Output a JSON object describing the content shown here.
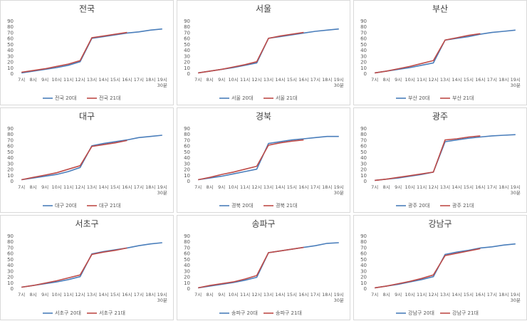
{
  "chart_data": [
    {
      "type": "line",
      "title": "전국",
      "categories": [
        "7시",
        "8시",
        "9시",
        "10시",
        "11시",
        "12시",
        "13시",
        "14시",
        "15시",
        "16시",
        "17시",
        "18시",
        "19시 30분"
      ],
      "ylim": [
        0,
        90
      ],
      "yticks": [
        0,
        10,
        20,
        30,
        40,
        50,
        60,
        70,
        80,
        90
      ],
      "grid": false,
      "series": [
        {
          "name": "전국 20대",
          "color": "#4a7ebb",
          "values": [
            2,
            5,
            8,
            11,
            15,
            21,
            61,
            64,
            67,
            70,
            72,
            75,
            77
          ]
        },
        {
          "name": "전국 21대",
          "color": "#be4b48",
          "values": [
            3,
            6,
            9,
            13,
            17,
            23,
            62,
            65,
            68,
            71,
            null,
            null,
            null
          ]
        }
      ]
    },
    {
      "type": "line",
      "title": "서울",
      "categories": [
        "7시",
        "8시",
        "9시",
        "10시",
        "11시",
        "12시",
        "13시",
        "14시",
        "15시",
        "16시",
        "17시",
        "18시",
        "19시 30분"
      ],
      "ylim": [
        0,
        90
      ],
      "yticks": [
        0,
        10,
        20,
        30,
        40,
        50,
        60,
        70,
        80,
        90
      ],
      "grid": false,
      "series": [
        {
          "name": "서울 20대",
          "color": "#4a7ebb",
          "values": [
            2,
            5,
            8,
            11,
            15,
            19,
            61,
            64,
            67,
            70,
            73,
            75,
            77
          ]
        },
        {
          "name": "서울 21대",
          "color": "#be4b48",
          "values": [
            2,
            5,
            8,
            12,
            16,
            21,
            61,
            65,
            68,
            71,
            null,
            null,
            null
          ]
        }
      ]
    },
    {
      "type": "line",
      "title": "부산",
      "categories": [
        "7시",
        "8시",
        "9시",
        "10시",
        "11시",
        "12시",
        "13시",
        "14시",
        "15시",
        "16시",
        "17시",
        "18시",
        "19시 30분"
      ],
      "ylim": [
        0,
        90
      ],
      "yticks": [
        0,
        10,
        20,
        30,
        40,
        50,
        60,
        70,
        80,
        90
      ],
      "grid": false,
      "series": [
        {
          "name": "부산 20대",
          "color": "#4a7ebb",
          "values": [
            2,
            5,
            8,
            11,
            15,
            19,
            58,
            61,
            64,
            68,
            71,
            73,
            75
          ]
        },
        {
          "name": "부산 21대",
          "color": "#be4b48",
          "values": [
            2,
            5,
            9,
            13,
            18,
            23,
            58,
            62,
            66,
            69,
            null,
            null,
            null
          ]
        }
      ]
    },
    {
      "type": "line",
      "title": "대구",
      "categories": [
        "7시",
        "8시",
        "9시",
        "10시",
        "11시",
        "12시",
        "13시",
        "14시",
        "15시",
        "16시",
        "17시",
        "18시",
        "19시 30분"
      ],
      "ylim": [
        0,
        90
      ],
      "yticks": [
        0,
        10,
        20,
        30,
        40,
        50,
        60,
        70,
        80,
        90
      ],
      "grid": false,
      "series": [
        {
          "name": "대구 20대",
          "color": "#4a7ebb",
          "values": [
            3,
            6,
            9,
            12,
            17,
            24,
            61,
            65,
            68,
            71,
            75,
            77,
            79
          ]
        },
        {
          "name": "대구 21대",
          "color": "#be4b48",
          "values": [
            3,
            7,
            11,
            15,
            21,
            27,
            60,
            63,
            66,
            70,
            null,
            null,
            null
          ]
        }
      ]
    },
    {
      "type": "line",
      "title": "경북",
      "categories": [
        "7시",
        "8시",
        "9시",
        "10시",
        "11시",
        "12시",
        "13시",
        "14시",
        "15시",
        "16시",
        "17시",
        "18시",
        "19시 30분"
      ],
      "ylim": [
        0,
        90
      ],
      "yticks": [
        0,
        10,
        20,
        30,
        40,
        50,
        60,
        70,
        80,
        90
      ],
      "grid": false,
      "series": [
        {
          "name": "경북 20대",
          "color": "#4a7ebb",
          "values": [
            3,
            6,
            9,
            13,
            17,
            21,
            65,
            68,
            71,
            73,
            75,
            77,
            77
          ]
        },
        {
          "name": "경북 21대",
          "color": "#be4b48",
          "values": [
            3,
            7,
            12,
            16,
            21,
            26,
            62,
            66,
            69,
            71,
            null,
            null,
            null
          ]
        }
      ]
    },
    {
      "type": "line",
      "title": "광주",
      "categories": [
        "7시",
        "8시",
        "9시",
        "10시",
        "11시",
        "12시",
        "13시",
        "14시",
        "15시",
        "16시",
        "17시",
        "18시",
        "19시 30분"
      ],
      "ylim": [
        0,
        90
      ],
      "yticks": [
        0,
        10,
        20,
        30,
        40,
        50,
        60,
        70,
        80,
        90
      ],
      "grid": false,
      "series": [
        {
          "name": "광주 20대",
          "color": "#4a7ebb",
          "values": [
            2,
            4,
            6,
            9,
            12,
            16,
            68,
            71,
            74,
            76,
            78,
            79,
            80
          ]
        },
        {
          "name": "광주 21대",
          "color": "#be4b48",
          "values": [
            2,
            4,
            7,
            10,
            13,
            16,
            71,
            73,
            76,
            78,
            null,
            null,
            null
          ]
        }
      ]
    },
    {
      "type": "line",
      "title": "서초구",
      "categories": [
        "7시",
        "8시",
        "9시",
        "10시",
        "11시",
        "12시",
        "13시",
        "14시",
        "15시",
        "16시",
        "17시",
        "18시",
        "19시 30분"
      ],
      "ylim": [
        0,
        90
      ],
      "yticks": [
        0,
        10,
        20,
        30,
        40,
        50,
        60,
        70,
        80,
        90
      ],
      "grid": false,
      "series": [
        {
          "name": "서초구 20대",
          "color": "#4a7ebb",
          "values": [
            3,
            6,
            9,
            12,
            16,
            21,
            60,
            64,
            67,
            70,
            74,
            77,
            79
          ]
        },
        {
          "name": "서초구 21대",
          "color": "#be4b48",
          "values": [
            3,
            6,
            10,
            14,
            19,
            24,
            59,
            63,
            66,
            70,
            null,
            null,
            null
          ]
        }
      ]
    },
    {
      "type": "line",
      "title": "송파구",
      "categories": [
        "7시",
        "8시",
        "9시",
        "10시",
        "11시",
        "12시",
        "13시",
        "14시",
        "15시",
        "16시",
        "17시",
        "18시",
        "19시 30분"
      ],
      "ylim": [
        0,
        90
      ],
      "yticks": [
        0,
        10,
        20,
        30,
        40,
        50,
        60,
        70,
        80,
        90
      ],
      "grid": false,
      "series": [
        {
          "name": "송파구 20대",
          "color": "#4a7ebb",
          "values": [
            2,
            5,
            8,
            11,
            15,
            20,
            62,
            65,
            68,
            71,
            74,
            78,
            79
          ]
        },
        {
          "name": "송파구 21대",
          "color": "#be4b48",
          "values": [
            2,
            6,
            9,
            12,
            17,
            23,
            62,
            65,
            68,
            71,
            null,
            null,
            null
          ]
        }
      ]
    },
    {
      "type": "line",
      "title": "강남구",
      "categories": [
        "7시",
        "8시",
        "9시",
        "10시",
        "11시",
        "12시",
        "13시",
        "14시",
        "15시",
        "16시",
        "17시",
        "18시",
        "19시 30분"
      ],
      "ylim": [
        0,
        90
      ],
      "yticks": [
        0,
        10,
        20,
        30,
        40,
        50,
        60,
        70,
        80,
        90
      ],
      "grid": false,
      "series": [
        {
          "name": "강남구 20대",
          "color": "#4a7ebb",
          "values": [
            2,
            5,
            8,
            12,
            16,
            21,
            59,
            63,
            66,
            70,
            72,
            75,
            77
          ]
        },
        {
          "name": "강남구 21대",
          "color": "#be4b48",
          "values": [
            2,
            5,
            9,
            13,
            18,
            24,
            57,
            61,
            65,
            69,
            null,
            null,
            null
          ]
        }
      ]
    }
  ]
}
